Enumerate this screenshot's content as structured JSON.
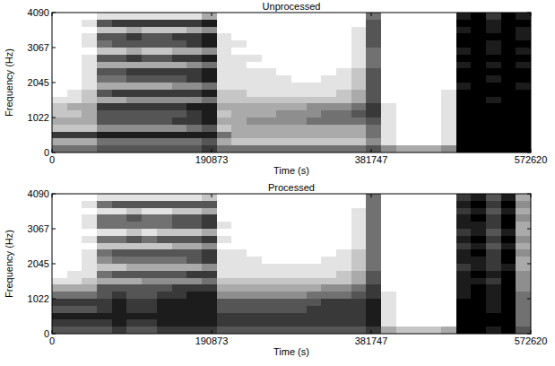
{
  "chart_data": [
    {
      "type": "heatmap",
      "title": "Unprocessed",
      "x_label": "Time (s)",
      "y_label": "Frequency (Hz)",
      "xlim": [
        0,
        572620
      ],
      "ylim": [
        0,
        4090
      ],
      "xticks": [
        0,
        190873,
        381747,
        572620
      ],
      "yticks": [
        0,
        1022,
        2045,
        3067,
        4090
      ],
      "value_range": [
        0,
        9
      ],
      "cells": [
        [
          0,
          0,
          0,
          1,
          1,
          1,
          1,
          1,
          1,
          1,
          3,
          0,
          0,
          0,
          0,
          0,
          0,
          0,
          0,
          0,
          0,
          5,
          0,
          0,
          0,
          0,
          0,
          8,
          9,
          7,
          9,
          8
        ],
        [
          0,
          0,
          1,
          6,
          7,
          7,
          7,
          7,
          7,
          7,
          8,
          0,
          0,
          0,
          0,
          0,
          0,
          0,
          0,
          0,
          0,
          6,
          0,
          0,
          0,
          0,
          0,
          9,
          9,
          8,
          9,
          9
        ],
        [
          0,
          0,
          0,
          2,
          2,
          3,
          2,
          2,
          2,
          3,
          4,
          0,
          0,
          0,
          0,
          0,
          0,
          0,
          0,
          0,
          1,
          6,
          0,
          0,
          0,
          0,
          0,
          8,
          9,
          8,
          9,
          8
        ],
        [
          0,
          0,
          1,
          6,
          6,
          7,
          6,
          6,
          7,
          7,
          8,
          1,
          0,
          0,
          0,
          0,
          0,
          0,
          0,
          0,
          1,
          6,
          0,
          0,
          0,
          0,
          0,
          9,
          9,
          9,
          9,
          8
        ],
        [
          0,
          0,
          1,
          5,
          6,
          6,
          6,
          6,
          6,
          7,
          8,
          1,
          1,
          0,
          0,
          0,
          0,
          0,
          0,
          0,
          1,
          6,
          0,
          0,
          0,
          0,
          0,
          9,
          9,
          8,
          9,
          9
        ],
        [
          0,
          0,
          0,
          2,
          2,
          3,
          2,
          2,
          3,
          3,
          4,
          1,
          0,
          0,
          0,
          0,
          0,
          0,
          0,
          0,
          1,
          5,
          0,
          0,
          0,
          0,
          0,
          8,
          9,
          8,
          9,
          8
        ],
        [
          0,
          0,
          1,
          6,
          6,
          7,
          6,
          6,
          7,
          7,
          8,
          1,
          1,
          1,
          0,
          0,
          0,
          0,
          0,
          0,
          1,
          5,
          0,
          0,
          0,
          0,
          0,
          9,
          9,
          9,
          9,
          9
        ],
        [
          0,
          0,
          1,
          3,
          3,
          3,
          3,
          3,
          3,
          4,
          5,
          1,
          1,
          0,
          0,
          0,
          0,
          0,
          0,
          0,
          1,
          5,
          0,
          0,
          0,
          0,
          0,
          8,
          9,
          8,
          9,
          8
        ],
        [
          0,
          0,
          1,
          6,
          6,
          7,
          7,
          7,
          7,
          7,
          8,
          1,
          1,
          1,
          1,
          0,
          0,
          0,
          0,
          1,
          2,
          6,
          0,
          0,
          0,
          0,
          0,
          9,
          9,
          9,
          9,
          9
        ],
        [
          0,
          0,
          1,
          5,
          5,
          6,
          6,
          6,
          6,
          7,
          8,
          1,
          1,
          1,
          1,
          1,
          0,
          0,
          1,
          1,
          2,
          6,
          0,
          0,
          0,
          0,
          0,
          9,
          9,
          8,
          9,
          9
        ],
        [
          0,
          0,
          1,
          3,
          3,
          3,
          3,
          3,
          4,
          4,
          5,
          1,
          1,
          1,
          1,
          1,
          1,
          1,
          1,
          1,
          2,
          6,
          0,
          0,
          0,
          0,
          0,
          8,
          9,
          9,
          9,
          8
        ],
        [
          0,
          1,
          2,
          6,
          7,
          7,
          7,
          7,
          7,
          7,
          8,
          2,
          2,
          1,
          1,
          1,
          1,
          1,
          1,
          2,
          3,
          6,
          0,
          0,
          0,
          0,
          1,
          9,
          9,
          9,
          9,
          9
        ],
        [
          1,
          1,
          2,
          3,
          3,
          4,
          4,
          4,
          4,
          4,
          5,
          2,
          2,
          2,
          2,
          2,
          2,
          2,
          2,
          2,
          3,
          6,
          0,
          0,
          0,
          0,
          1,
          9,
          9,
          8,
          9,
          9
        ],
        [
          2,
          3,
          3,
          7,
          7,
          7,
          7,
          7,
          7,
          8,
          8,
          3,
          3,
          3,
          3,
          3,
          3,
          4,
          4,
          4,
          5,
          7,
          1,
          0,
          0,
          0,
          1,
          9,
          9,
          9,
          9,
          9
        ],
        [
          2,
          2,
          3,
          6,
          6,
          6,
          6,
          6,
          6,
          7,
          8,
          2,
          3,
          3,
          3,
          4,
          4,
          4,
          5,
          5,
          6,
          7,
          1,
          0,
          0,
          0,
          1,
          9,
          9,
          9,
          9,
          9
        ],
        [
          3,
          3,
          3,
          6,
          6,
          6,
          6,
          6,
          7,
          7,
          8,
          3,
          3,
          4,
          4,
          4,
          4,
          5,
          5,
          5,
          5,
          6,
          1,
          0,
          0,
          0,
          1,
          9,
          9,
          9,
          9,
          9
        ],
        [
          2,
          2,
          2,
          4,
          4,
          4,
          4,
          4,
          4,
          5,
          6,
          2,
          3,
          3,
          3,
          3,
          3,
          3,
          3,
          3,
          3,
          5,
          1,
          0,
          0,
          0,
          1,
          9,
          9,
          9,
          9,
          9
        ],
        [
          7,
          7,
          7,
          8,
          8,
          8,
          8,
          8,
          8,
          8,
          8,
          5,
          3,
          3,
          3,
          3,
          3,
          3,
          3,
          3,
          3,
          5,
          1,
          0,
          0,
          0,
          1,
          9,
          9,
          9,
          9,
          9
        ],
        [
          3,
          3,
          3,
          5,
          5,
          5,
          5,
          5,
          5,
          5,
          6,
          3,
          2,
          2,
          2,
          2,
          2,
          2,
          2,
          2,
          2,
          4,
          1,
          0,
          0,
          0,
          1,
          9,
          9,
          9,
          9,
          9
        ],
        [
          5,
          5,
          5,
          6,
          6,
          6,
          6,
          6,
          6,
          6,
          7,
          5,
          5,
          5,
          5,
          5,
          5,
          5,
          5,
          5,
          5,
          6,
          4,
          3,
          3,
          3,
          4,
          9,
          9,
          9,
          9,
          9
        ]
      ]
    },
    {
      "type": "heatmap",
      "title": "Processed",
      "x_label": "Time (s)",
      "y_label": "Frequency (Hz)",
      "xlim": [
        0,
        572620
      ],
      "ylim": [
        0,
        4090
      ],
      "xticks": [
        0,
        190873,
        381747,
        572620
      ],
      "yticks": [
        0,
        1022,
        2045,
        3067,
        4090
      ],
      "value_range": [
        0,
        9
      ],
      "cells": [
        [
          0,
          0,
          0,
          1,
          1,
          1,
          1,
          1,
          1,
          1,
          2,
          0,
          0,
          0,
          0,
          0,
          0,
          0,
          0,
          0,
          0,
          5,
          0,
          0,
          0,
          0,
          0,
          7,
          8,
          6,
          8,
          3
        ],
        [
          0,
          0,
          1,
          5,
          6,
          6,
          6,
          6,
          6,
          6,
          6,
          0,
          0,
          0,
          0,
          0,
          0,
          0,
          0,
          0,
          0,
          5,
          0,
          0,
          0,
          0,
          0,
          8,
          9,
          7,
          9,
          4
        ],
        [
          0,
          0,
          0,
          1,
          1,
          2,
          1,
          1,
          2,
          2,
          3,
          0,
          0,
          0,
          0,
          0,
          0,
          0,
          0,
          0,
          1,
          5,
          0,
          0,
          0,
          0,
          0,
          7,
          8,
          6,
          8,
          3
        ],
        [
          0,
          0,
          1,
          5,
          5,
          6,
          5,
          5,
          6,
          6,
          7,
          0,
          0,
          0,
          0,
          0,
          0,
          0,
          0,
          0,
          1,
          5,
          0,
          0,
          0,
          0,
          0,
          8,
          9,
          7,
          9,
          4
        ],
        [
          0,
          0,
          1,
          5,
          5,
          5,
          5,
          5,
          6,
          6,
          7,
          1,
          0,
          0,
          0,
          0,
          0,
          0,
          0,
          0,
          1,
          5,
          0,
          0,
          0,
          0,
          0,
          8,
          8,
          7,
          9,
          3
        ],
        [
          0,
          0,
          0,
          1,
          1,
          2,
          1,
          2,
          2,
          2,
          3,
          0,
          0,
          0,
          0,
          0,
          0,
          0,
          0,
          0,
          1,
          5,
          0,
          0,
          0,
          0,
          0,
          7,
          8,
          6,
          8,
          3
        ],
        [
          0,
          0,
          1,
          5,
          5,
          6,
          5,
          6,
          6,
          6,
          7,
          1,
          0,
          0,
          0,
          0,
          0,
          0,
          0,
          0,
          1,
          5,
          0,
          0,
          0,
          0,
          0,
          8,
          9,
          7,
          9,
          4
        ],
        [
          0,
          0,
          0,
          2,
          2,
          2,
          2,
          2,
          3,
          3,
          4,
          0,
          0,
          0,
          0,
          0,
          0,
          0,
          0,
          0,
          1,
          5,
          0,
          0,
          0,
          0,
          0,
          7,
          8,
          6,
          8,
          3
        ],
        [
          0,
          0,
          1,
          5,
          6,
          6,
          6,
          6,
          6,
          6,
          7,
          1,
          1,
          0,
          0,
          0,
          0,
          0,
          0,
          1,
          2,
          5,
          0,
          0,
          0,
          0,
          0,
          8,
          9,
          7,
          9,
          4
        ],
        [
          0,
          0,
          1,
          4,
          5,
          5,
          5,
          5,
          5,
          6,
          7,
          1,
          1,
          1,
          0,
          0,
          0,
          0,
          1,
          1,
          2,
          5,
          0,
          0,
          0,
          0,
          0,
          8,
          8,
          7,
          9,
          3
        ],
        [
          0,
          0,
          1,
          2,
          2,
          3,
          3,
          3,
          3,
          3,
          4,
          1,
          1,
          1,
          1,
          1,
          1,
          1,
          1,
          1,
          2,
          5,
          0,
          0,
          0,
          0,
          0,
          7,
          8,
          7,
          8,
          3
        ],
        [
          0,
          1,
          1,
          5,
          6,
          6,
          6,
          6,
          6,
          7,
          7,
          1,
          1,
          1,
          1,
          1,
          1,
          1,
          1,
          2,
          3,
          6,
          0,
          0,
          0,
          0,
          0,
          8,
          9,
          8,
          9,
          4
        ],
        [
          1,
          1,
          2,
          3,
          3,
          3,
          4,
          4,
          4,
          4,
          5,
          2,
          2,
          2,
          2,
          2,
          2,
          2,
          2,
          2,
          3,
          6,
          0,
          0,
          0,
          0,
          0,
          8,
          8,
          7,
          9,
          4
        ],
        [
          3,
          3,
          3,
          6,
          6,
          6,
          6,
          6,
          7,
          7,
          7,
          3,
          3,
          3,
          3,
          3,
          3,
          3,
          4,
          4,
          5,
          7,
          0,
          0,
          0,
          0,
          0,
          8,
          9,
          8,
          9,
          4
        ],
        [
          5,
          5,
          5,
          6,
          7,
          6,
          6,
          7,
          7,
          8,
          8,
          4,
          4,
          4,
          4,
          4,
          4,
          5,
          5,
          5,
          6,
          7,
          1,
          0,
          0,
          0,
          0,
          8,
          9,
          8,
          9,
          5
        ],
        [
          7,
          7,
          7,
          7,
          8,
          7,
          7,
          8,
          8,
          8,
          8,
          6,
          6,
          6,
          6,
          6,
          6,
          6,
          7,
          7,
          7,
          8,
          1,
          0,
          0,
          0,
          0,
          9,
          9,
          8,
          9,
          5
        ],
        [
          6,
          6,
          6,
          7,
          8,
          7,
          7,
          8,
          8,
          8,
          8,
          6,
          6,
          6,
          6,
          6,
          6,
          7,
          7,
          7,
          7,
          8,
          1,
          0,
          0,
          0,
          0,
          9,
          9,
          8,
          9,
          5
        ],
        [
          8,
          8,
          8,
          8,
          8,
          8,
          8,
          8,
          8,
          8,
          8,
          7,
          7,
          7,
          7,
          7,
          7,
          7,
          7,
          7,
          7,
          8,
          1,
          0,
          0,
          0,
          0,
          9,
          9,
          9,
          9,
          5
        ],
        [
          7,
          7,
          7,
          7,
          8,
          7,
          7,
          8,
          8,
          8,
          8,
          7,
          7,
          7,
          7,
          7,
          7,
          7,
          7,
          7,
          7,
          8,
          1,
          0,
          0,
          0,
          0,
          9,
          9,
          9,
          9,
          5
        ],
        [
          6,
          6,
          6,
          6,
          7,
          6,
          6,
          7,
          7,
          7,
          7,
          6,
          6,
          6,
          6,
          6,
          6,
          6,
          6,
          6,
          6,
          7,
          3,
          2,
          2,
          2,
          3,
          9,
          9,
          8,
          9,
          6
        ]
      ]
    }
  ]
}
